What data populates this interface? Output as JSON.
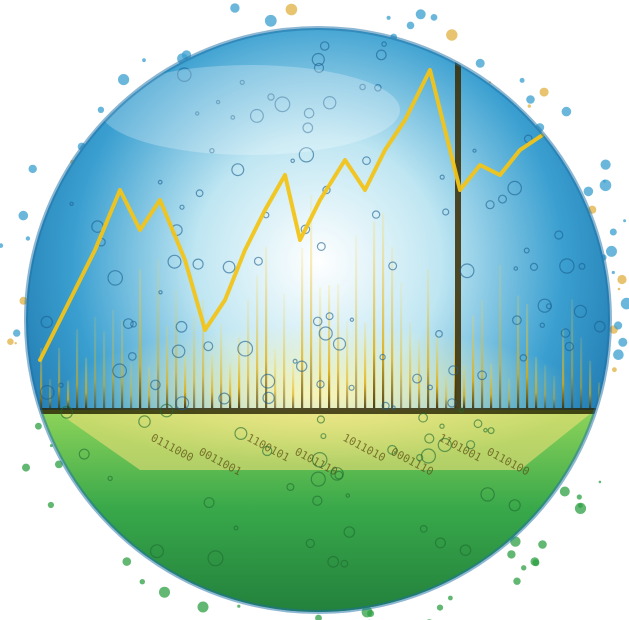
{
  "image": {
    "subject": "water-sphere-with-financial-chart",
    "colors": {
      "background": "#ffffff",
      "water_blue": "#3a9fd0",
      "water_deep": "#1b6fa6",
      "water_green": "#2ea043",
      "water_green_light": "#8fd45a",
      "chart_line": "#f2c418",
      "bar_gold": "#e0a800",
      "bar_dark": "#3a2a00"
    },
    "binary_strip": [
      "0111000",
      "0011001",
      "1100101",
      "0101110",
      "1011010",
      "0001110",
      "1101001",
      "0110100"
    ]
  }
}
